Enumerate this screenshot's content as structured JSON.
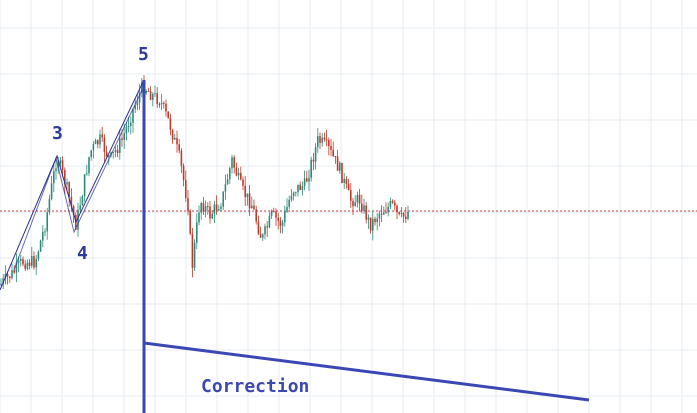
{
  "chart_data": {
    "type": "candlestick",
    "title": "",
    "xlabel": "",
    "ylabel": "",
    "grid": true,
    "colors": {
      "up": "#2e8b7a",
      "down": "#c0392b",
      "wave_line": "#2a2f8f",
      "annotation": "#3a48b0",
      "grid": "#e3ebf2",
      "reference_line": "#d04040"
    },
    "wave_labels": [
      {
        "id": "wave-3",
        "text": "3"
      },
      {
        "id": "wave-4",
        "text": "4"
      },
      {
        "id": "wave-5",
        "text": "5"
      }
    ],
    "annotation_text": "Correction",
    "reference_level": "horizontal dotted line"
  }
}
